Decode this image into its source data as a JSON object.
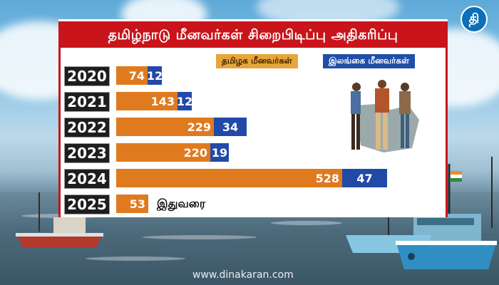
{
  "title": "தமிழ்நாடு மீனவர்கள் சிறைபிடிப்பு அதிகரிப்பு",
  "logo_text": "தி",
  "watermark": "www.dinakaran.com",
  "chart_data": {
    "type": "bar",
    "orientation": "horizontal",
    "stacked": true,
    "categories": [
      "2020",
      "2021",
      "2022",
      "2023",
      "2024",
      "2025"
    ],
    "series": [
      {
        "name": "தமிழக மீனவர்கள்",
        "values": [
          74,
          143,
          229,
          220,
          528,
          53
        ],
        "color": "#e07a1f"
      },
      {
        "name": "இலங்கை மீனவர்கள்",
        "values": [
          12,
          12,
          34,
          19,
          47,
          null
        ],
        "color": "#2149a8"
      }
    ],
    "annotations": [
      {
        "category": "2025",
        "text": "இதுவரை"
      }
    ]
  }
}
